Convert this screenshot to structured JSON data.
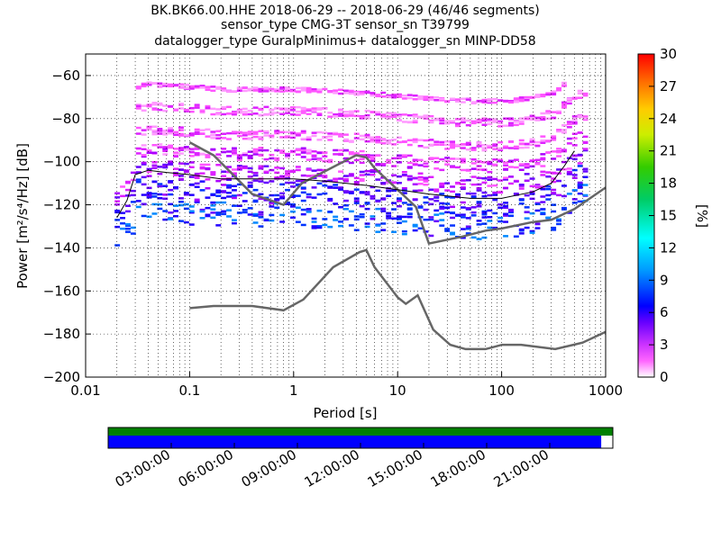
{
  "chart_data": {
    "type": "heatmap",
    "title_lines": [
      "BK.BK66.00.HHE   2018-06-29 -- 2018-06-29  (46/46 segments)",
      "sensor_type CMG-3T sensor_sn T39799",
      "datalogger_type GuralpMinimus+ datalogger_sn MINP-DD58"
    ],
    "xlabel": "Period [s]",
    "ylabel": "Power [m²/s⁴/Hz] [dB]",
    "x_scale": "log",
    "xlim": [
      0.01,
      1000
    ],
    "x_ticks": [
      {
        "value": 0.01,
        "label": "0.01"
      },
      {
        "value": 0.1,
        "label": "0.1"
      },
      {
        "value": 1,
        "label": "1"
      },
      {
        "value": 10,
        "label": "10"
      },
      {
        "value": 100,
        "label": "100"
      },
      {
        "value": 1000,
        "label": "1000"
      }
    ],
    "ylim": [
      -200,
      -50
    ],
    "y_ticks": [
      {
        "value": -60,
        "label": "−60"
      },
      {
        "value": -80,
        "label": "−80"
      },
      {
        "value": -100,
        "label": "−100"
      },
      {
        "value": -120,
        "label": "−120"
      },
      {
        "value": -140,
        "label": "−140"
      },
      {
        "value": -160,
        "label": "−160"
      },
      {
        "value": -180,
        "label": "−180"
      },
      {
        "value": -200,
        "label": "−200"
      }
    ],
    "grid": true,
    "colorbar": {
      "label": "[%]",
      "range": [
        0,
        30
      ],
      "ticks": [
        {
          "value": 0,
          "label": "0"
        },
        {
          "value": 3,
          "label": "3"
        },
        {
          "value": 6,
          "label": "6"
        },
        {
          "value": 9,
          "label": "9"
        },
        {
          "value": 12,
          "label": "12"
        },
        {
          "value": 15,
          "label": "15"
        },
        {
          "value": 18,
          "label": "18"
        },
        {
          "value": 21,
          "label": "21"
        },
        {
          "value": 24,
          "label": "24"
        },
        {
          "value": 27,
          "label": "27"
        },
        {
          "value": 30,
          "label": "30"
        }
      ]
    },
    "noise_models": [
      {
        "name": "NHNM",
        "points": [
          [
            0.1,
            -91
          ],
          [
            0.17,
            -97
          ],
          [
            0.4,
            -115
          ],
          [
            0.8,
            -120
          ],
          [
            1.2,
            -110
          ],
          [
            2.5,
            -102
          ],
          [
            4,
            -97
          ],
          [
            5,
            -98
          ],
          [
            6,
            -103
          ],
          [
            10,
            -113
          ],
          [
            15,
            -121
          ],
          [
            20,
            -138
          ],
          [
            40,
            -135
          ],
          [
            70,
            -132
          ],
          [
            100,
            -131
          ],
          [
            200,
            -128
          ],
          [
            300,
            -127
          ],
          [
            500,
            -122
          ],
          [
            1000,
            -112
          ]
        ]
      },
      {
        "name": "NLNM",
        "points": [
          [
            0.1,
            -168
          ],
          [
            0.17,
            -167
          ],
          [
            0.4,
            -167
          ],
          [
            0.8,
            -169
          ],
          [
            1.24,
            -164
          ],
          [
            2.4,
            -149
          ],
          [
            4.3,
            -142
          ],
          [
            5,
            -141
          ],
          [
            6,
            -149
          ],
          [
            10,
            -163
          ],
          [
            12,
            -166
          ],
          [
            15.6,
            -162
          ],
          [
            22,
            -178
          ],
          [
            32,
            -185
          ],
          [
            45,
            -187
          ],
          [
            70,
            -187
          ],
          [
            101,
            -185
          ],
          [
            154,
            -185
          ],
          [
            328,
            -187
          ],
          [
            600,
            -184
          ],
          [
            1000,
            -179
          ]
        ]
      }
    ],
    "mean_curve": {
      "name": "mean",
      "points": [
        [
          0.02,
          -126
        ],
        [
          0.025,
          -118
        ],
        [
          0.03,
          -106
        ],
        [
          0.04,
          -104
        ],
        [
          0.06,
          -105
        ],
        [
          0.1,
          -106
        ],
        [
          0.2,
          -108
        ],
        [
          0.5,
          -108
        ],
        [
          1,
          -108
        ],
        [
          2,
          -109
        ],
        [
          5,
          -111
        ],
        [
          10,
          -113
        ],
        [
          20,
          -115
        ],
        [
          50,
          -117
        ],
        [
          100,
          -117
        ],
        [
          200,
          -114
        ],
        [
          300,
          -110
        ],
        [
          400,
          -102
        ],
        [
          500,
          -95
        ]
      ]
    },
    "density_clusters": [
      {
        "center": -124,
        "spread": 6,
        "level": 7
      },
      {
        "center": -114,
        "spread": 5,
        "level": 6
      },
      {
        "center": -105,
        "spread": 4,
        "level": 4
      },
      {
        "center": -96,
        "spread": 3,
        "level": 3
      },
      {
        "center": -87,
        "spread": 2,
        "level": 2
      },
      {
        "center": -76,
        "spread": 2,
        "level": 2
      },
      {
        "center": -66,
        "spread": 1,
        "level": 2
      }
    ],
    "availability": {
      "time_ticks": [
        "03:00:00",
        "06:00:00",
        "09:00:00",
        "12:00:00",
        "15:00:00",
        "18:00:00",
        "21:00:00"
      ],
      "time_tick_hours": [
        3,
        6,
        9,
        12,
        15,
        18,
        21
      ],
      "coverage_fraction": 0.977,
      "data_color": "#0000ff",
      "gap_free_color": "#008000"
    }
  }
}
